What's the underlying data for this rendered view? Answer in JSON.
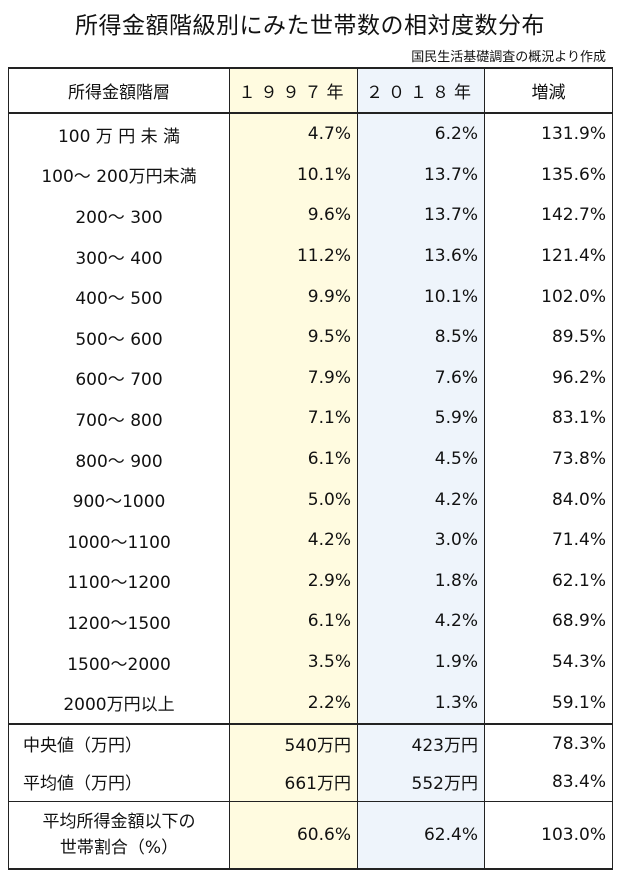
{
  "title": "所得金額階級別にみた世帯数の相対度数分布",
  "source": "国民生活基礎調査の概況より作成",
  "columns": [
    "所得金額階層",
    "１９９７年",
    "２０１８年",
    "増減"
  ],
  "rows": [
    {
      "label": "100 万 円 未 満",
      "y1997": "4.7%",
      "y2018": "6.2%",
      "change": "131.9%"
    },
    {
      "label": "100～ 200万円未満",
      "y1997": "10.1%",
      "y2018": "13.7%",
      "change": "135.6%"
    },
    {
      "label": "200～ 300",
      "y1997": "9.6%",
      "y2018": "13.7%",
      "change": "142.7%"
    },
    {
      "label": "300～ 400",
      "y1997": "11.2%",
      "y2018": "13.6%",
      "change": "121.4%"
    },
    {
      "label": "400～ 500",
      "y1997": "9.9%",
      "y2018": "10.1%",
      "change": "102.0%"
    },
    {
      "label": "500～ 600",
      "y1997": "9.5%",
      "y2018": "8.5%",
      "change": "89.5%"
    },
    {
      "label": "600～ 700",
      "y1997": "7.9%",
      "y2018": "7.6%",
      "change": "96.2%"
    },
    {
      "label": "700～ 800",
      "y1997": "7.1%",
      "y2018": "5.9%",
      "change": "83.1%"
    },
    {
      "label": "800～ 900",
      "y1997": "6.1%",
      "y2018": "4.5%",
      "change": "73.8%"
    },
    {
      "label": "900～1000",
      "y1997": "5.0%",
      "y2018": "4.2%",
      "change": "84.0%"
    },
    {
      "label": "1000～1100",
      "y1997": "4.2%",
      "y2018": "3.0%",
      "change": "71.4%"
    },
    {
      "label": "1100～1200",
      "y1997": "2.9%",
      "y2018": "1.8%",
      "change": "62.1%"
    },
    {
      "label": "1200～1500",
      "y1997": "6.1%",
      "y2018": "4.2%",
      "change": "68.9%"
    },
    {
      "label": "1500～2000",
      "y1997": "3.5%",
      "y2018": "1.9%",
      "change": "54.3%"
    },
    {
      "label": "2000万円以上",
      "y1997": "2.2%",
      "y2018": "1.3%",
      "change": "59.1%"
    }
  ],
  "summary": [
    {
      "label": "中央値（万円）",
      "y1997": "540万円",
      "y2018": "423万円",
      "change": "78.3%"
    },
    {
      "label": "平均値（万円）",
      "y1997": "661万円",
      "y2018": "552万円",
      "change": "83.4%"
    },
    {
      "label_line1": "平均所得金額以下の",
      "label_line2": "世帯割合（%）",
      "y1997": "60.6%",
      "y2018": "62.4%",
      "change": "103.0%"
    }
  ]
}
